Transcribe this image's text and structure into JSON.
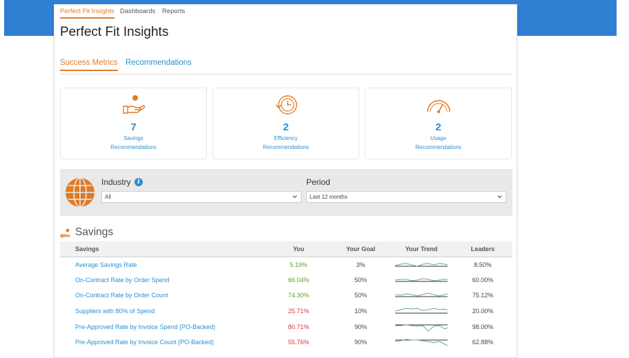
{
  "nav": {
    "items": [
      "Perfect Fit Insights",
      "Dashboards",
      "Reports"
    ]
  },
  "page": {
    "title": "Perfect Fit Insights"
  },
  "subtabs": [
    "Success Metrics",
    "Recommendations"
  ],
  "metrics": [
    {
      "icon": "hand-money-icon",
      "count": "7",
      "line1": "Savings",
      "line2": "Recommendations"
    },
    {
      "icon": "clock-history-icon",
      "count": "2",
      "line1": "Efficiency",
      "line2": "Recommendations"
    },
    {
      "icon": "gauge-icon",
      "count": "2",
      "line1": "Usage",
      "line2": "Recommendations"
    }
  ],
  "filters": {
    "industry": {
      "label": "Industry",
      "value": "All"
    },
    "period": {
      "label": "Period",
      "value": "Last 12 months"
    }
  },
  "savings": {
    "title": "Savings",
    "columns": [
      "Savings",
      "You",
      "Your Goal",
      "Your Trend",
      "Leaders"
    ],
    "rows": [
      {
        "name": "Average Savings Rate",
        "you": "5.19%",
        "status": "green",
        "goal": "3%",
        "leaders": "8.50%"
      },
      {
        "name": "On-Contract Rate by Order Spend",
        "you": "66.04%",
        "status": "green",
        "goal": "50%",
        "leaders": "60.00%"
      },
      {
        "name": "On-Contract Rate by Order Count",
        "you": "74.30%",
        "status": "green",
        "goal": "50%",
        "leaders": "75.12%"
      },
      {
        "name": "Suppliers with 80% of Spend",
        "you": "25.71%",
        "status": "red",
        "goal": "10%",
        "leaders": "20.00%"
      },
      {
        "name": "Pre-Approved Rate by Invoice Spend (PO-Backed)",
        "you": "80.71%",
        "status": "red",
        "goal": "90%",
        "leaders": "98.00%"
      },
      {
        "name": "Pre-Approved Rate by Invoice Count (PO-Backed)",
        "you": "55.76%",
        "status": "red",
        "goal": "90%",
        "leaders": "62.88%"
      }
    ]
  },
  "colors": {
    "accent": "#e07b28",
    "link": "#2b8fd0",
    "good": "#5aa02c",
    "bad": "#d9373a",
    "band": "#2f7fd2"
  }
}
